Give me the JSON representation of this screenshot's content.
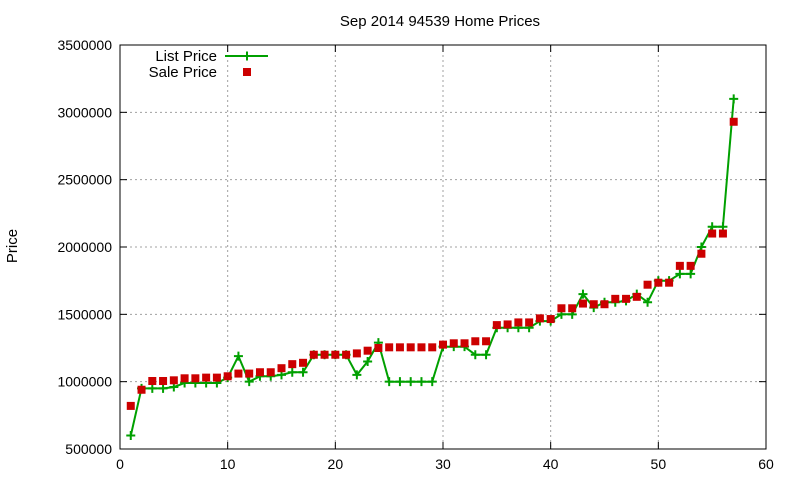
{
  "chart_data": {
    "type": "line",
    "title": "Sep 2014 94539 Home Prices",
    "xlabel": "",
    "ylabel": "Price",
    "xlim": [
      0,
      60
    ],
    "ylim": [
      500000,
      3500000
    ],
    "x_ticks": [
      0,
      10,
      20,
      30,
      40,
      50,
      60
    ],
    "y_ticks": [
      500000,
      1000000,
      1500000,
      2000000,
      2500000,
      3000000,
      3500000
    ],
    "x_tick_labels": [
      "0",
      "10",
      "20",
      "30",
      "40",
      "50",
      "60"
    ],
    "y_tick_labels": [
      "500000",
      "1000000",
      "1500000",
      "2000000",
      "2500000",
      "3000000",
      "3500000"
    ],
    "grid": true,
    "legend_position": "top-left",
    "series": [
      {
        "name": "List Price",
        "style": "line-with-plus-markers",
        "color": "#00a000",
        "x": [
          1,
          2,
          3,
          4,
          5,
          6,
          7,
          8,
          9,
          10,
          11,
          12,
          13,
          14,
          15,
          16,
          17,
          18,
          19,
          20,
          21,
          22,
          23,
          24,
          25,
          26,
          27,
          28,
          29,
          30,
          31,
          32,
          33,
          34,
          35,
          36,
          37,
          38,
          39,
          40,
          41,
          42,
          43,
          44,
          45,
          46,
          47,
          48,
          49,
          50,
          51,
          52,
          53,
          54,
          55,
          56,
          57
        ],
        "values": [
          600000,
          950000,
          950000,
          950000,
          960000,
          990000,
          990000,
          990000,
          990000,
          1030000,
          1190000,
          1000000,
          1040000,
          1040000,
          1050000,
          1070000,
          1070000,
          1200000,
          1200000,
          1200000,
          1200000,
          1050000,
          1150000,
          1290000,
          1000000,
          1000000,
          1000000,
          1000000,
          1000000,
          1260000,
          1260000,
          1260000,
          1200000,
          1200000,
          1400000,
          1400000,
          1400000,
          1400000,
          1450000,
          1450000,
          1500000,
          1500000,
          1650000,
          1550000,
          1590000,
          1590000,
          1600000,
          1650000,
          1590000,
          1750000,
          1750000,
          1800000,
          1800000,
          2000000,
          2150000,
          2150000,
          3100000
        ]
      },
      {
        "name": "Sale Price",
        "style": "square-markers",
        "color": "#cc0000",
        "x": [
          1,
          2,
          3,
          4,
          5,
          6,
          7,
          8,
          9,
          10,
          11,
          12,
          13,
          14,
          15,
          16,
          17,
          18,
          19,
          20,
          21,
          22,
          23,
          24,
          25,
          26,
          27,
          28,
          29,
          30,
          31,
          32,
          33,
          34,
          35,
          36,
          37,
          38,
          39,
          40,
          41,
          42,
          43,
          44,
          45,
          46,
          47,
          48,
          49,
          50,
          51,
          52,
          53,
          54,
          55,
          56,
          57
        ],
        "values": [
          820000,
          940000,
          1005000,
          1005000,
          1010000,
          1025000,
          1025000,
          1030000,
          1030000,
          1040000,
          1060000,
          1060000,
          1070000,
          1070000,
          1100000,
          1130000,
          1140000,
          1200000,
          1200000,
          1200000,
          1200000,
          1210000,
          1230000,
          1250000,
          1255000,
          1255000,
          1255000,
          1255000,
          1255000,
          1275000,
          1285000,
          1285000,
          1300000,
          1300000,
          1420000,
          1425000,
          1440000,
          1440000,
          1470000,
          1465000,
          1545000,
          1545000,
          1580000,
          1575000,
          1575000,
          1615000,
          1615000,
          1630000,
          1720000,
          1735000,
          1735000,
          1860000,
          1860000,
          1950000,
          2100000,
          2100000,
          2930000
        ]
      }
    ]
  }
}
